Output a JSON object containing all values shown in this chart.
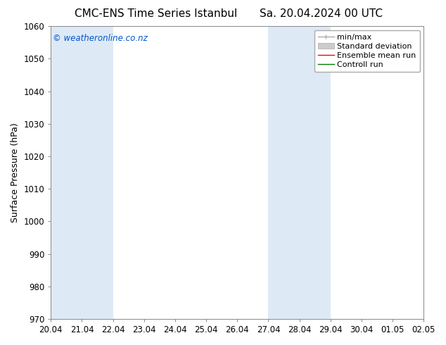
{
  "title_left": "CMC-ENS Time Series Istanbul",
  "title_right": "Sa. 20.04.2024 00 UTC",
  "ylabel": "Surface Pressure (hPa)",
  "xlabel": "",
  "ylim": [
    970,
    1060
  ],
  "yticks": [
    970,
    980,
    990,
    1000,
    1010,
    1020,
    1030,
    1040,
    1050,
    1060
  ],
  "xtick_labels": [
    "20.04",
    "21.04",
    "22.04",
    "23.04",
    "24.04",
    "25.04",
    "26.04",
    "27.04",
    "28.04",
    "29.04",
    "30.04",
    "01.05",
    "02.05"
  ],
  "xtick_positions": [
    0,
    1,
    2,
    3,
    4,
    5,
    6,
    7,
    8,
    9,
    10,
    11,
    12
  ],
  "shaded_bands": [
    {
      "x_start": 0,
      "x_end": 1,
      "color": "#ddeaf6"
    },
    {
      "x_start": 1,
      "x_end": 2,
      "color": "#ddeaf6"
    },
    {
      "x_start": 7,
      "x_end": 8,
      "color": "#ddeaf6"
    },
    {
      "x_start": 8,
      "x_end": 9,
      "color": "#ddeaf6"
    }
  ],
  "watermark_text": "© weatheronline.co.nz",
  "watermark_color": "#0055cc",
  "legend_entries": [
    {
      "label": "min/max",
      "color": "#aaaaaa",
      "linestyle": "-",
      "linewidth": 1.0
    },
    {
      "label": "Standard deviation",
      "color": "#cccccc",
      "linestyle": "-",
      "linewidth": 5
    },
    {
      "label": "Ensemble mean run",
      "color": "#ff0000",
      "linestyle": "-",
      "linewidth": 1.0
    },
    {
      "label": "Controll run",
      "color": "#008000",
      "linestyle": "-",
      "linewidth": 1.0
    }
  ],
  "bg_color": "#ffffff",
  "plot_bg_color": "#ffffff",
  "spine_color": "#888888",
  "tick_label_fontsize": 8.5,
  "axis_label_fontsize": 9,
  "title_fontsize": 11,
  "watermark_fontsize": 8.5,
  "legend_fontsize": 8
}
